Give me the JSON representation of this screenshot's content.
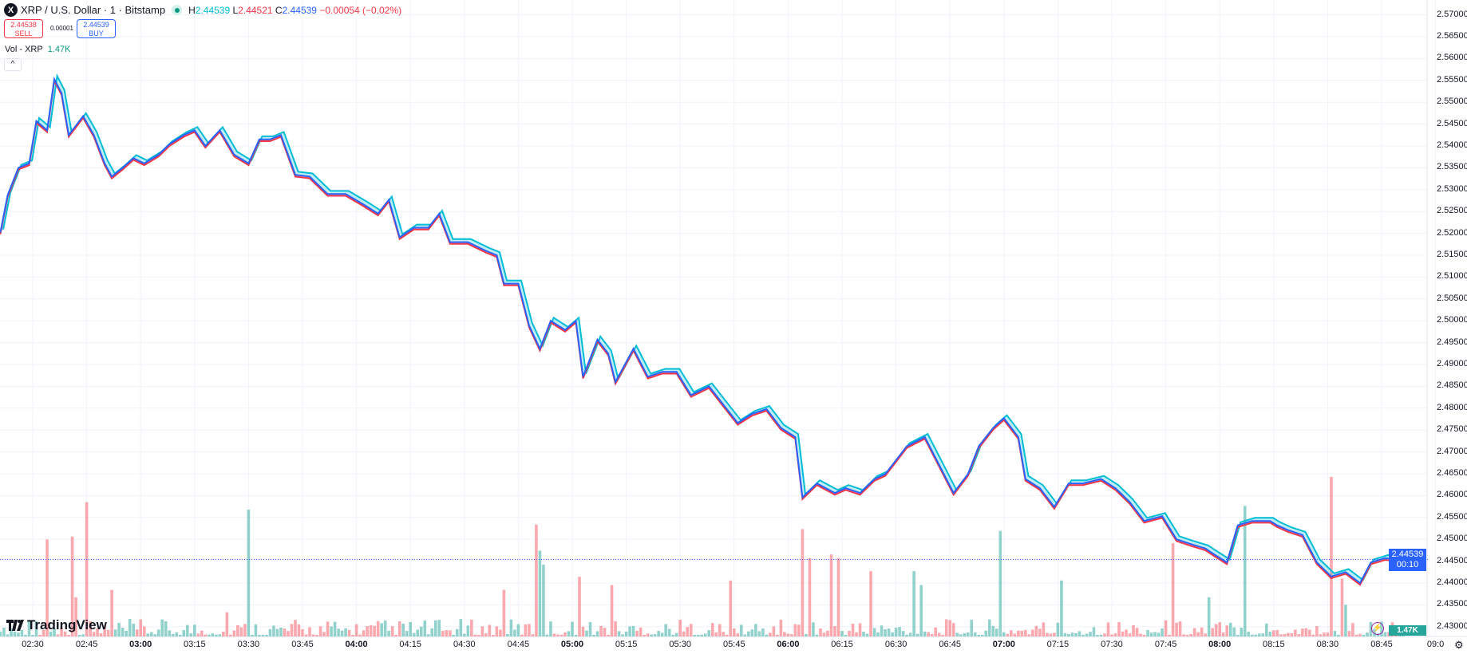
{
  "header": {
    "logo_text": "X",
    "title": "XRP / U.S. Dollar · 1 · Bitstamp",
    "high_label": "H",
    "high": "2.44539",
    "low_label": "L",
    "low": "2.44521",
    "close_label": "C",
    "close": "2.44539",
    "change": "−0.00054 (−0.02%)"
  },
  "trade": {
    "sell_price": "2.44538",
    "sell_label": "SELL",
    "spread": "0.00001",
    "buy_price": "2.44539",
    "buy_label": "BUY"
  },
  "volume_legend": {
    "label": "Vol - XRP",
    "value": "1.47K"
  },
  "collapse_icon": "^",
  "price_axis": {
    "labels": [
      "2.57000",
      "2.56500",
      "2.56000",
      "2.55500",
      "2.55000",
      "2.54500",
      "2.54000",
      "2.53500",
      "2.53000",
      "2.52500",
      "2.52000",
      "2.51500",
      "2.51000",
      "2.50500",
      "2.50000",
      "2.49500",
      "2.49000",
      "2.48500",
      "2.48000",
      "2.47500",
      "2.47000",
      "2.46500",
      "2.46000",
      "2.45500",
      "2.45000",
      "2.44500",
      "2.44000",
      "2.43500",
      "2.43000"
    ],
    "current_price": "2.44539",
    "countdown": "00:10",
    "current_volume": "1.47K"
  },
  "time_axis": {
    "labels": [
      {
        "t": "02:30",
        "bold": false
      },
      {
        "t": "02:45",
        "bold": false
      },
      {
        "t": "03:00",
        "bold": true
      },
      {
        "t": "03:15",
        "bold": false
      },
      {
        "t": "03:30",
        "bold": false
      },
      {
        "t": "03:45",
        "bold": false
      },
      {
        "t": "04:00",
        "bold": true
      },
      {
        "t": "04:15",
        "bold": false
      },
      {
        "t": "04:30",
        "bold": false
      },
      {
        "t": "04:45",
        "bold": false
      },
      {
        "t": "05:00",
        "bold": true
      },
      {
        "t": "05:15",
        "bold": false
      },
      {
        "t": "05:30",
        "bold": false
      },
      {
        "t": "05:45",
        "bold": false
      },
      {
        "t": "06:00",
        "bold": true
      },
      {
        "t": "06:15",
        "bold": false
      },
      {
        "t": "06:30",
        "bold": false
      },
      {
        "t": "06:45",
        "bold": false
      },
      {
        "t": "07:00",
        "bold": true
      },
      {
        "t": "07:15",
        "bold": false
      },
      {
        "t": "07:30",
        "bold": false
      },
      {
        "t": "07:45",
        "bold": false
      },
      {
        "t": "08:00",
        "bold": true
      },
      {
        "t": "08:15",
        "bold": false
      },
      {
        "t": "08:30",
        "bold": false
      },
      {
        "t": "08:45",
        "bold": false
      },
      {
        "t": "09:0",
        "bold": false
      }
    ]
  },
  "branding": "TradingView",
  "colors": {
    "high": "#00bcd4",
    "low": "#f23645",
    "close": "#2962ff",
    "vol_up": "#26a69a",
    "vol_down": "#f7525f",
    "accent": "#2962ff"
  },
  "chart_data": {
    "type": "line",
    "title": "XRP / U.S. Dollar · 1 · Bitstamp",
    "x_unit": "minutes since 02:30",
    "ylim": [
      2.42,
      2.57
    ],
    "close": [
      [
        -9,
        2.5202
      ],
      [
        -7,
        2.5287
      ],
      [
        -4,
        2.535
      ],
      [
        -1,
        2.536
      ],
      [
        1,
        2.5457
      ],
      [
        4,
        2.5436
      ],
      [
        6,
        2.5553
      ],
      [
        8,
        2.5521
      ],
      [
        10,
        2.5425
      ],
      [
        14,
        2.5468
      ],
      [
        17,
        2.5425
      ],
      [
        20,
        2.536
      ],
      [
        22,
        2.533
      ],
      [
        25,
        2.535
      ],
      [
        28,
        2.5372
      ],
      [
        31,
        2.536
      ],
      [
        35,
        2.538
      ],
      [
        38,
        2.5404
      ],
      [
        42,
        2.5425
      ],
      [
        45,
        2.5436
      ],
      [
        48,
        2.54
      ],
      [
        52,
        2.5436
      ],
      [
        56,
        2.538
      ],
      [
        60,
        2.536
      ],
      [
        63,
        2.5415
      ],
      [
        66,
        2.5415
      ],
      [
        69,
        2.5425
      ],
      [
        73,
        2.5334
      ],
      [
        77,
        2.533
      ],
      [
        82,
        2.529
      ],
      [
        87,
        2.529
      ],
      [
        92,
        2.5266
      ],
      [
        96,
        2.5245
      ],
      [
        99,
        2.5277
      ],
      [
        102,
        2.5191
      ],
      [
        106,
        2.5213
      ],
      [
        110,
        2.5213
      ],
      [
        113,
        2.5245
      ],
      [
        116,
        2.518
      ],
      [
        121,
        2.518
      ],
      [
        126,
        2.516
      ],
      [
        129,
        2.515
      ],
      [
        131,
        2.5085
      ],
      [
        135,
        2.5085
      ],
      [
        138,
        2.4989
      ],
      [
        141,
        2.4936
      ],
      [
        144,
        2.5
      ],
      [
        148,
        2.4979
      ],
      [
        151,
        2.5
      ],
      [
        153,
        2.4872
      ],
      [
        157,
        2.4957
      ],
      [
        160,
        2.4925
      ],
      [
        162,
        2.486
      ],
      [
        167,
        2.4936
      ],
      [
        171,
        2.4872
      ],
      [
        175,
        2.4883
      ],
      [
        179,
        2.4883
      ],
      [
        183,
        2.483
      ],
      [
        188,
        2.485
      ],
      [
        192,
        2.4808
      ],
      [
        196,
        2.4766
      ],
      [
        200,
        2.4787
      ],
      [
        204,
        2.4798
      ],
      [
        208,
        2.4755
      ],
      [
        212,
        2.4734
      ],
      [
        214,
        2.4596
      ],
      [
        218,
        2.4628
      ],
      [
        223,
        2.4606
      ],
      [
        226,
        2.4617
      ],
      [
        230,
        2.4606
      ],
      [
        234,
        2.4638
      ],
      [
        237,
        2.4649
      ],
      [
        243,
        2.4713
      ],
      [
        248,
        2.4734
      ],
      [
        252,
        2.467
      ],
      [
        256,
        2.4606
      ],
      [
        260,
        2.4649
      ],
      [
        263,
        2.4713
      ],
      [
        267,
        2.4755
      ],
      [
        270,
        2.4777
      ],
      [
        274,
        2.4734
      ],
      [
        276,
        2.4638
      ],
      [
        280,
        2.4617
      ],
      [
        284,
        2.4574
      ],
      [
        288,
        2.4628
      ],
      [
        292,
        2.4628
      ],
      [
        297,
        2.4638
      ],
      [
        301,
        2.4617
      ],
      [
        305,
        2.4585
      ],
      [
        309,
        2.4542
      ],
      [
        314,
        2.4553
      ],
      [
        318,
        2.45
      ],
      [
        322,
        2.4489
      ],
      [
        326,
        2.4479
      ],
      [
        328,
        2.4468
      ],
      [
        332,
        2.4447
      ],
      [
        335,
        2.4532
      ],
      [
        339,
        2.4542
      ],
      [
        344,
        2.4542
      ],
      [
        346,
        2.4532
      ],
      [
        349,
        2.4521
      ],
      [
        353,
        2.451
      ],
      [
        357,
        2.4447
      ],
      [
        361,
        2.4415
      ],
      [
        365,
        2.4425
      ],
      [
        369,
        2.44
      ],
      [
        372,
        2.4447
      ],
      [
        376,
        2.4457
      ],
      [
        379,
        2.4454
      ]
    ],
    "volume_spikes_k": [
      [
        4,
        36.4,
        "down"
      ],
      [
        11,
        37.5,
        "down"
      ],
      [
        12,
        14.7,
        "down"
      ],
      [
        15,
        50.4,
        "down"
      ],
      [
        22,
        17.5,
        "down"
      ],
      [
        54,
        9.1,
        "down"
      ],
      [
        60,
        47.6,
        "up"
      ],
      [
        131,
        17.5,
        "down"
      ],
      [
        140,
        42,
        "down"
      ],
      [
        141,
        32.2,
        "up"
      ],
      [
        142,
        27,
        "up"
      ],
      [
        152,
        22.4,
        "down"
      ],
      [
        161,
        19.3,
        "down"
      ],
      [
        194,
        21,
        "down"
      ],
      [
        214,
        40.3,
        "down"
      ],
      [
        216,
        29.4,
        "down"
      ],
      [
        222,
        30.8,
        "down"
      ],
      [
        224,
        29.4,
        "down"
      ],
      [
        233,
        24.5,
        "down"
      ],
      [
        245,
        24.5,
        "up"
      ],
      [
        247,
        19.3,
        "up"
      ],
      [
        269,
        39.6,
        "up"
      ],
      [
        286,
        21,
        "up"
      ],
      [
        317,
        35,
        "down"
      ],
      [
        327,
        14.7,
        "up"
      ],
      [
        337,
        49,
        "up"
      ],
      [
        361,
        59.9,
        "down"
      ],
      [
        364,
        21.7,
        "down"
      ],
      [
        365,
        11.9,
        "up"
      ],
      [
        381,
        1.47,
        "up"
      ]
    ]
  }
}
